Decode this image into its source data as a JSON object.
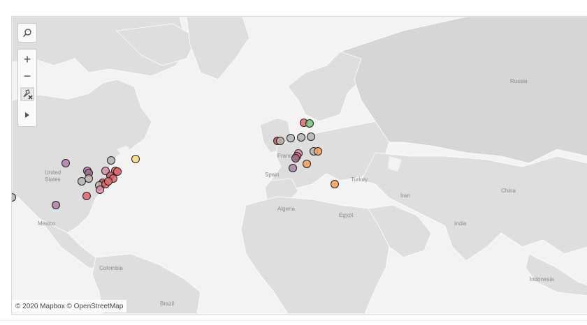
{
  "map": {
    "labels": {
      "russia": "Russia",
      "united_states": "United\nStates",
      "france": "France",
      "spain": "Spain",
      "turkey": "Turkey",
      "iran": "Iran",
      "china": "China",
      "algeria": "Algeria",
      "egypt": "Egypt",
      "india": "India",
      "mexico": "Mexico",
      "colombia": "Colombia",
      "brazil": "Brazil",
      "indonesia": "Indonesia"
    },
    "attribution": "© 2020 Mapbox © OpenStreetMap",
    "controls": {
      "search_icon": "search-icon",
      "zoom_in": "+",
      "zoom_out": "−",
      "pin_icon": "pin-clear-icon",
      "play_icon": "play-icon"
    },
    "colors": {
      "red": "#e0656a",
      "dark_red": "#c0545a",
      "pink": "#d98aa5",
      "purple": "#b07fae",
      "mauve": "#9c6a8f",
      "gray": "#b5b5b5",
      "tan": "#c3b3a4",
      "orange": "#f2a05a",
      "yellow": "#f5dc76",
      "green": "#74c274"
    },
    "markers": [
      {
        "id": "us-nw",
        "color": "purple"
      },
      {
        "id": "us-mid1",
        "color": "purple"
      },
      {
        "id": "us-mid2",
        "color": "mauve"
      },
      {
        "id": "us-ne1",
        "color": "gray"
      },
      {
        "id": "us-ne2",
        "color": "pink"
      },
      {
        "id": "us-ne3",
        "color": "red"
      },
      {
        "id": "us-ne4",
        "color": "red"
      },
      {
        "id": "us-ne5",
        "color": "dark_red"
      },
      {
        "id": "us-ne6",
        "color": "red"
      },
      {
        "id": "us-e1",
        "color": "tan"
      },
      {
        "id": "us-e2",
        "color": "gray"
      },
      {
        "id": "us-e3",
        "color": "dark_red"
      },
      {
        "id": "us-e4",
        "color": "tan"
      },
      {
        "id": "us-e5",
        "color": "red"
      },
      {
        "id": "us-e6",
        "color": "pink"
      },
      {
        "id": "us-e7",
        "color": "red"
      },
      {
        "id": "us-se",
        "color": "red"
      },
      {
        "id": "us-tx",
        "color": "purple"
      },
      {
        "id": "us-w",
        "color": "gray"
      },
      {
        "id": "ca-e",
        "color": "yellow"
      },
      {
        "id": "uk1",
        "color": "dark_red"
      },
      {
        "id": "uk2",
        "color": "tan"
      },
      {
        "id": "uk3",
        "color": "gray"
      },
      {
        "id": "eu-n1",
        "color": "gray"
      },
      {
        "id": "eu-n2",
        "color": "gray"
      },
      {
        "id": "eu-n3",
        "color": "red"
      },
      {
        "id": "eu-n4",
        "color": "green"
      },
      {
        "id": "eu-c1",
        "color": "pink"
      },
      {
        "id": "eu-c2",
        "color": "red"
      },
      {
        "id": "eu-c3",
        "color": "mauve"
      },
      {
        "id": "eu-c4",
        "color": "gray"
      },
      {
        "id": "eu-c5",
        "color": "orange"
      },
      {
        "id": "eu-s1",
        "color": "orange"
      },
      {
        "id": "eu-s2",
        "color": "purple"
      },
      {
        "id": "tr",
        "color": "orange"
      }
    ]
  }
}
